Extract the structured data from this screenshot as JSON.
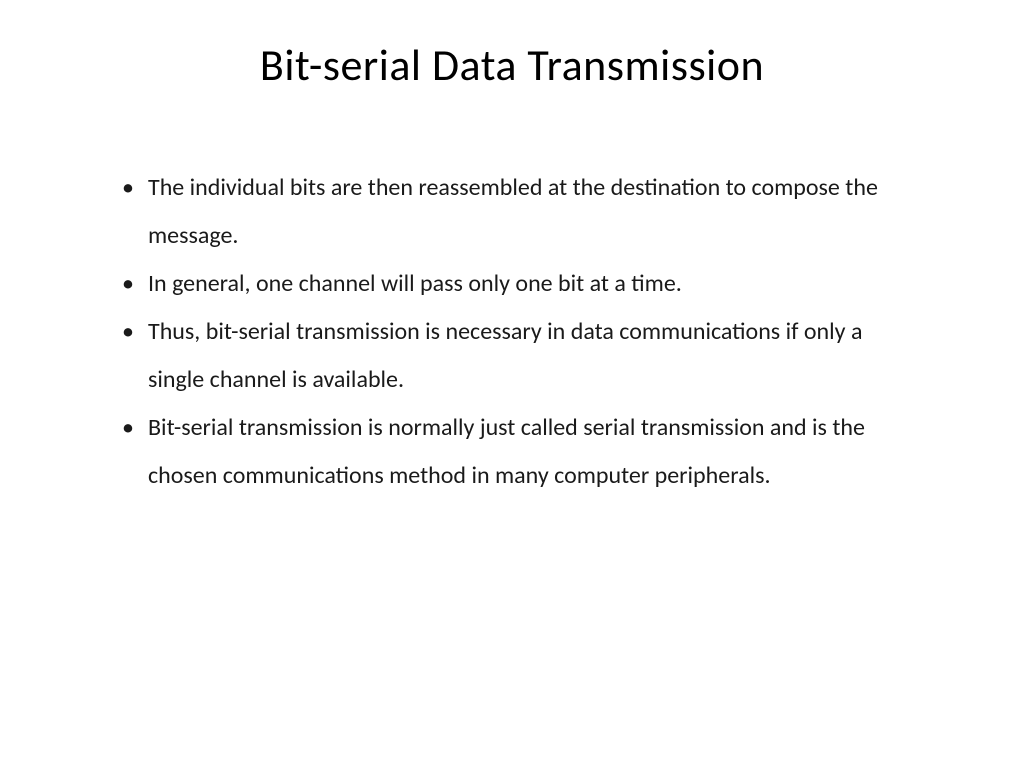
{
  "slide": {
    "title": "Bit-serial Data Transmission",
    "bullets": [
      " The individual bits are then reassembled at the destination to compose the message.",
      " In general, one channel will pass only one bit at a time.",
      "Thus, bit-serial transmission is necessary in data communications if only a single channel is available.",
      " Bit-serial transmission is normally just called serial transmission and is the chosen communications method in many computer peripherals."
    ],
    "styling": {
      "background_color": "#ffffff",
      "text_color": "#000000",
      "title_fontsize": 44,
      "body_fontsize": 24,
      "font_family": "Calibri"
    }
  }
}
